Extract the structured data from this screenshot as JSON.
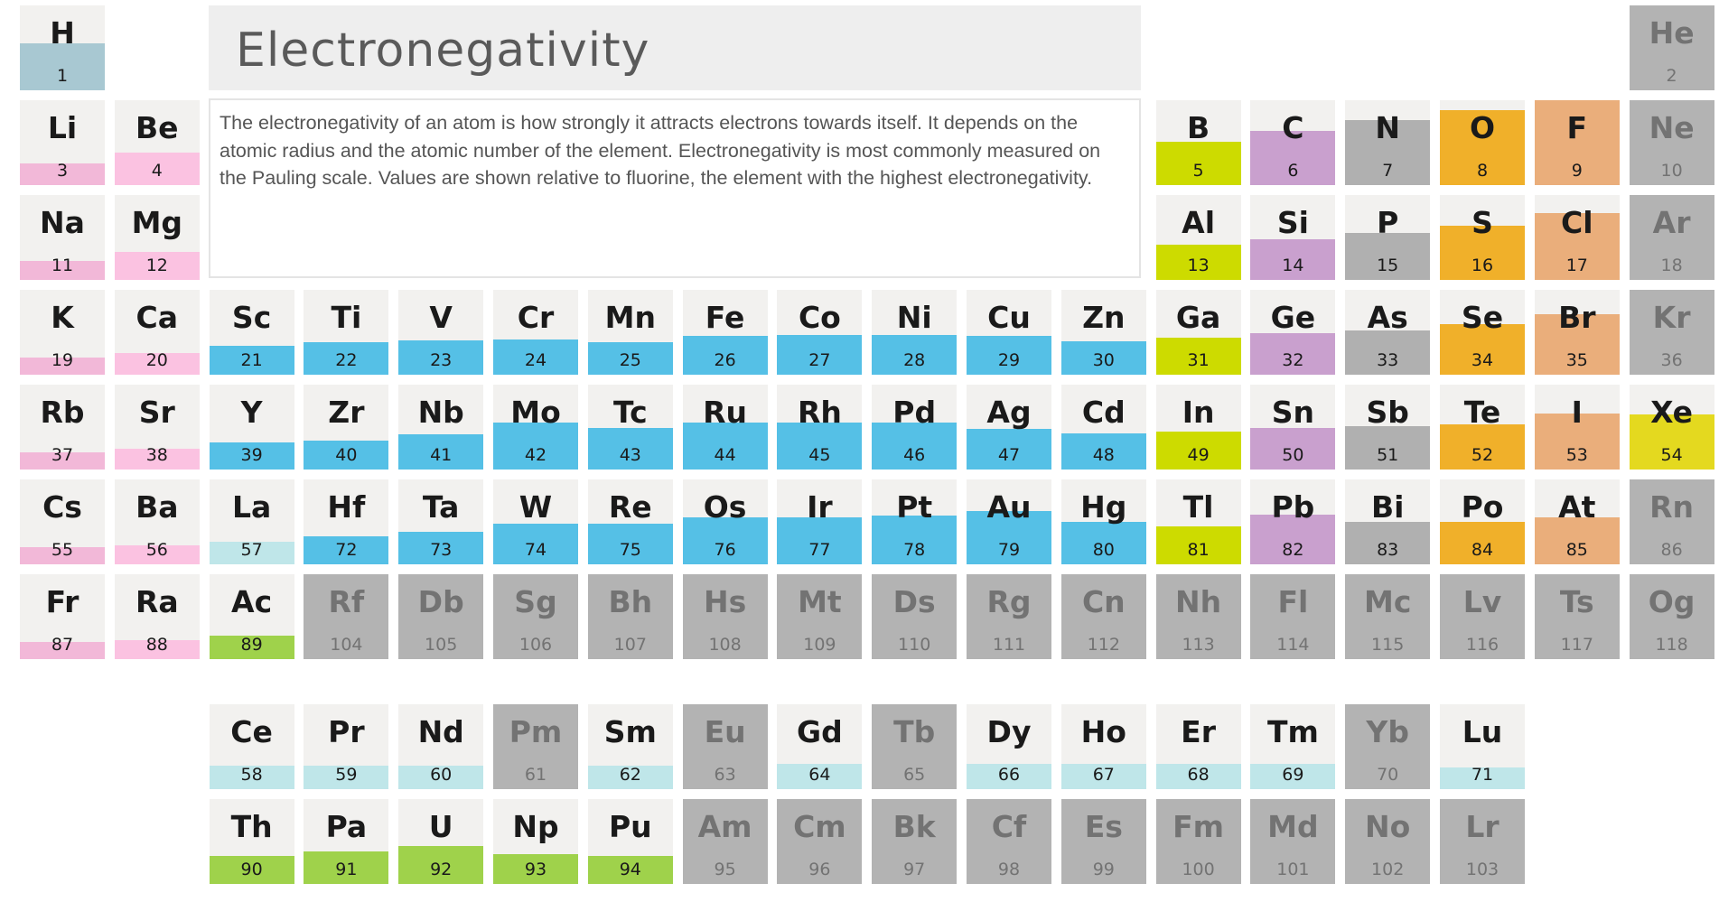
{
  "title": "Electronegativity",
  "description": "The electronegativity of an atom is how strongly it attracts electrons towards itself. It depends on the atomic radius and the atomic number of the element. Electronegativity is most commonly measured on the Pauling scale. Values are shown relative to fluorine, the element with the highest electronegativity.",
  "colors": {
    "cell_background": "#f2f1ef",
    "unknown_background": "#b3b3b3",
    "gray_text": "#737373",
    "groups": {
      "hydrogen": "#a8c8d2",
      "alkali": "#f2b8d8",
      "alkaline": "#fbc2e1",
      "transition": "#55c0e6",
      "lanthanide": "#bfe6e9",
      "actinide": "#9fd24b",
      "post_transition": "#cddb00",
      "metalloid": "#c9a0ce",
      "nonmetal": "#b0b0b0",
      "oxygen_group": "#f0b02a",
      "halogen": "#eaae7b",
      "noble": "#e4d91f"
    }
  },
  "elements": [
    {
      "symbol": "H",
      "number": 1,
      "row": 0,
      "col": 0,
      "group": "hydrogen",
      "fill": 0.55
    },
    {
      "symbol": "He",
      "number": 2,
      "row": 0,
      "col": 17,
      "group": "unknown",
      "fill": 0
    },
    {
      "symbol": "Li",
      "number": 3,
      "row": 1,
      "col": 0,
      "group": "alkali",
      "fill": 0.25
    },
    {
      "symbol": "Be",
      "number": 4,
      "row": 1,
      "col": 1,
      "group": "alkaline",
      "fill": 0.38
    },
    {
      "symbol": "B",
      "number": 5,
      "row": 1,
      "col": 12,
      "group": "post_transition",
      "fill": 0.51
    },
    {
      "symbol": "C",
      "number": 6,
      "row": 1,
      "col": 13,
      "group": "metalloid",
      "fill": 0.64
    },
    {
      "symbol": "N",
      "number": 7,
      "row": 1,
      "col": 14,
      "group": "nonmetal",
      "fill": 0.77
    },
    {
      "symbol": "O",
      "number": 8,
      "row": 1,
      "col": 15,
      "group": "oxygen_group",
      "fill": 0.88
    },
    {
      "symbol": "F",
      "number": 9,
      "row": 1,
      "col": 16,
      "group": "halogen",
      "fill": 1.0
    },
    {
      "symbol": "Ne",
      "number": 10,
      "row": 1,
      "col": 17,
      "group": "unknown",
      "fill": 0
    },
    {
      "symbol": "Na",
      "number": 11,
      "row": 2,
      "col": 0,
      "group": "alkali",
      "fill": 0.22
    },
    {
      "symbol": "Mg",
      "number": 12,
      "row": 2,
      "col": 1,
      "group": "alkaline",
      "fill": 0.33
    },
    {
      "symbol": "Al",
      "number": 13,
      "row": 2,
      "col": 12,
      "group": "post_transition",
      "fill": 0.41
    },
    {
      "symbol": "Si",
      "number": 14,
      "row": 2,
      "col": 13,
      "group": "metalloid",
      "fill": 0.48
    },
    {
      "symbol": "P",
      "number": 15,
      "row": 2,
      "col": 14,
      "group": "nonmetal",
      "fill": 0.55
    },
    {
      "symbol": "S",
      "number": 16,
      "row": 2,
      "col": 15,
      "group": "oxygen_group",
      "fill": 0.64
    },
    {
      "symbol": "Cl",
      "number": 17,
      "row": 2,
      "col": 16,
      "group": "halogen",
      "fill": 0.79
    },
    {
      "symbol": "Ar",
      "number": 18,
      "row": 2,
      "col": 17,
      "group": "unknown",
      "fill": 0
    },
    {
      "symbol": "K",
      "number": 19,
      "row": 3,
      "col": 0,
      "group": "alkali",
      "fill": 0.2
    },
    {
      "symbol": "Ca",
      "number": 20,
      "row": 3,
      "col": 1,
      "group": "alkaline",
      "fill": 0.25
    },
    {
      "symbol": "Sc",
      "number": 21,
      "row": 3,
      "col": 2,
      "group": "transition",
      "fill": 0.34
    },
    {
      "symbol": "Ti",
      "number": 22,
      "row": 3,
      "col": 3,
      "group": "transition",
      "fill": 0.38
    },
    {
      "symbol": "V",
      "number": 23,
      "row": 3,
      "col": 4,
      "group": "transition",
      "fill": 0.4
    },
    {
      "symbol": "Cr",
      "number": 24,
      "row": 3,
      "col": 5,
      "group": "transition",
      "fill": 0.41
    },
    {
      "symbol": "Mn",
      "number": 25,
      "row": 3,
      "col": 6,
      "group": "transition",
      "fill": 0.38
    },
    {
      "symbol": "Fe",
      "number": 26,
      "row": 3,
      "col": 7,
      "group": "transition",
      "fill": 0.46
    },
    {
      "symbol": "Co",
      "number": 27,
      "row": 3,
      "col": 8,
      "group": "transition",
      "fill": 0.47
    },
    {
      "symbol": "Ni",
      "number": 28,
      "row": 3,
      "col": 9,
      "group": "transition",
      "fill": 0.47
    },
    {
      "symbol": "Cu",
      "number": 29,
      "row": 3,
      "col": 10,
      "group": "transition",
      "fill": 0.46
    },
    {
      "symbol": "Zn",
      "number": 30,
      "row": 3,
      "col": 11,
      "group": "transition",
      "fill": 0.39
    },
    {
      "symbol": "Ga",
      "number": 31,
      "row": 3,
      "col": 12,
      "group": "post_transition",
      "fill": 0.44
    },
    {
      "symbol": "Ge",
      "number": 32,
      "row": 3,
      "col": 13,
      "group": "metalloid",
      "fill": 0.49
    },
    {
      "symbol": "As",
      "number": 33,
      "row": 3,
      "col": 14,
      "group": "nonmetal",
      "fill": 0.52
    },
    {
      "symbol": "Se",
      "number": 34,
      "row": 3,
      "col": 15,
      "group": "oxygen_group",
      "fill": 0.6
    },
    {
      "symbol": "Br",
      "number": 35,
      "row": 3,
      "col": 16,
      "group": "halogen",
      "fill": 0.71
    },
    {
      "symbol": "Kr",
      "number": 36,
      "row": 3,
      "col": 17,
      "group": "unknown",
      "fill": 0
    },
    {
      "symbol": "Rb",
      "number": 37,
      "row": 4,
      "col": 0,
      "group": "alkali",
      "fill": 0.2
    },
    {
      "symbol": "Sr",
      "number": 38,
      "row": 4,
      "col": 1,
      "group": "alkaline",
      "fill": 0.24
    },
    {
      "symbol": "Y",
      "number": 39,
      "row": 4,
      "col": 2,
      "group": "transition",
      "fill": 0.32
    },
    {
      "symbol": "Zr",
      "number": 40,
      "row": 4,
      "col": 3,
      "group": "transition",
      "fill": 0.34
    },
    {
      "symbol": "Nb",
      "number": 41,
      "row": 4,
      "col": 4,
      "group": "transition",
      "fill": 0.41
    },
    {
      "symbol": "Mo",
      "number": 42,
      "row": 4,
      "col": 5,
      "group": "transition",
      "fill": 0.55
    },
    {
      "symbol": "Tc",
      "number": 43,
      "row": 4,
      "col": 6,
      "group": "transition",
      "fill": 0.49
    },
    {
      "symbol": "Ru",
      "number": 44,
      "row": 4,
      "col": 7,
      "group": "transition",
      "fill": 0.55
    },
    {
      "symbol": "Rh",
      "number": 45,
      "row": 4,
      "col": 8,
      "group": "transition",
      "fill": 0.55
    },
    {
      "symbol": "Pd",
      "number": 46,
      "row": 4,
      "col": 9,
      "group": "transition",
      "fill": 0.55
    },
    {
      "symbol": "Ag",
      "number": 47,
      "row": 4,
      "col": 10,
      "group": "transition",
      "fill": 0.48
    },
    {
      "symbol": "Cd",
      "number": 48,
      "row": 4,
      "col": 11,
      "group": "transition",
      "fill": 0.43
    },
    {
      "symbol": "In",
      "number": 49,
      "row": 4,
      "col": 12,
      "group": "post_transition",
      "fill": 0.45
    },
    {
      "symbol": "Sn",
      "number": 50,
      "row": 4,
      "col": 13,
      "group": "metalloid",
      "fill": 0.49
    },
    {
      "symbol": "Sb",
      "number": 51,
      "row": 4,
      "col": 14,
      "group": "nonmetal",
      "fill": 0.51
    },
    {
      "symbol": "Te",
      "number": 52,
      "row": 4,
      "col": 15,
      "group": "oxygen_group",
      "fill": 0.53
    },
    {
      "symbol": "I",
      "number": 53,
      "row": 4,
      "col": 16,
      "group": "halogen",
      "fill": 0.66
    },
    {
      "symbol": "Xe",
      "number": 54,
      "row": 4,
      "col": 17,
      "group": "noble",
      "fill": 0.65
    },
    {
      "symbol": "Cs",
      "number": 55,
      "row": 5,
      "col": 0,
      "group": "alkali",
      "fill": 0.2
    },
    {
      "symbol": "Ba",
      "number": 56,
      "row": 5,
      "col": 1,
      "group": "alkaline",
      "fill": 0.22
    },
    {
      "symbol": "La",
      "number": 57,
      "row": 5,
      "col": 2,
      "group": "lanthanide",
      "fill": 0.27
    },
    {
      "symbol": "Hf",
      "number": 72,
      "row": 5,
      "col": 3,
      "group": "transition",
      "fill": 0.33
    },
    {
      "symbol": "Ta",
      "number": 73,
      "row": 5,
      "col": 4,
      "group": "transition",
      "fill": 0.38
    },
    {
      "symbol": "W",
      "number": 74,
      "row": 5,
      "col": 5,
      "group": "transition",
      "fill": 0.48
    },
    {
      "symbol": "Re",
      "number": 75,
      "row": 5,
      "col": 6,
      "group": "transition",
      "fill": 0.48
    },
    {
      "symbol": "Os",
      "number": 76,
      "row": 5,
      "col": 7,
      "group": "transition",
      "fill": 0.55
    },
    {
      "symbol": "Ir",
      "number": 77,
      "row": 5,
      "col": 8,
      "group": "transition",
      "fill": 0.55
    },
    {
      "symbol": "Pt",
      "number": 78,
      "row": 5,
      "col": 9,
      "group": "transition",
      "fill": 0.57
    },
    {
      "symbol": "Au",
      "number": 79,
      "row": 5,
      "col": 10,
      "group": "transition",
      "fill": 0.63
    },
    {
      "symbol": "Hg",
      "number": 80,
      "row": 5,
      "col": 11,
      "group": "transition",
      "fill": 0.5
    },
    {
      "symbol": "Tl",
      "number": 81,
      "row": 5,
      "col": 12,
      "group": "post_transition",
      "fill": 0.45
    },
    {
      "symbol": "Pb",
      "number": 82,
      "row": 5,
      "col": 13,
      "group": "metalloid",
      "fill": 0.58
    },
    {
      "symbol": "Bi",
      "number": 83,
      "row": 5,
      "col": 14,
      "group": "nonmetal",
      "fill": 0.5
    },
    {
      "symbol": "Po",
      "number": 84,
      "row": 5,
      "col": 15,
      "group": "oxygen_group",
      "fill": 0.5
    },
    {
      "symbol": "At",
      "number": 85,
      "row": 5,
      "col": 16,
      "group": "halogen",
      "fill": 0.55
    },
    {
      "symbol": "Rn",
      "number": 86,
      "row": 5,
      "col": 17,
      "group": "unknown",
      "fill": 0
    },
    {
      "symbol": "Fr",
      "number": 87,
      "row": 6,
      "col": 0,
      "group": "alkali",
      "fill": 0.2
    },
    {
      "symbol": "Ra",
      "number": 88,
      "row": 6,
      "col": 1,
      "group": "alkaline",
      "fill": 0.22
    },
    {
      "symbol": "Ac",
      "number": 89,
      "row": 6,
      "col": 2,
      "group": "actinide",
      "fill": 0.28
    },
    {
      "symbol": "Rf",
      "number": 104,
      "row": 6,
      "col": 3,
      "group": "unknown",
      "fill": 0
    },
    {
      "symbol": "Db",
      "number": 105,
      "row": 6,
      "col": 4,
      "group": "unknown",
      "fill": 0
    },
    {
      "symbol": "Sg",
      "number": 106,
      "row": 6,
      "col": 5,
      "group": "unknown",
      "fill": 0
    },
    {
      "symbol": "Bh",
      "number": 107,
      "row": 6,
      "col": 6,
      "group": "unknown",
      "fill": 0
    },
    {
      "symbol": "Hs",
      "number": 108,
      "row": 6,
      "col": 7,
      "group": "unknown",
      "fill": 0
    },
    {
      "symbol": "Mt",
      "number": 109,
      "row": 6,
      "col": 8,
      "group": "unknown",
      "fill": 0
    },
    {
      "symbol": "Ds",
      "number": 110,
      "row": 6,
      "col": 9,
      "group": "unknown",
      "fill": 0
    },
    {
      "symbol": "Rg",
      "number": 111,
      "row": 6,
      "col": 10,
      "group": "unknown",
      "fill": 0
    },
    {
      "symbol": "Cn",
      "number": 112,
      "row": 6,
      "col": 11,
      "group": "unknown",
      "fill": 0
    },
    {
      "symbol": "Nh",
      "number": 113,
      "row": 6,
      "col": 12,
      "group": "unknown",
      "fill": 0
    },
    {
      "symbol": "Fl",
      "number": 114,
      "row": 6,
      "col": 13,
      "group": "unknown",
      "fill": 0
    },
    {
      "symbol": "Mc",
      "number": 115,
      "row": 6,
      "col": 14,
      "group": "unknown",
      "fill": 0
    },
    {
      "symbol": "Lv",
      "number": 116,
      "row": 6,
      "col": 15,
      "group": "unknown",
      "fill": 0
    },
    {
      "symbol": "Ts",
      "number": 117,
      "row": 6,
      "col": 16,
      "group": "unknown",
      "fill": 0
    },
    {
      "symbol": "Og",
      "number": 118,
      "row": 6,
      "col": 17,
      "group": "unknown",
      "fill": 0
    },
    {
      "symbol": "Ce",
      "number": 58,
      "row": 7,
      "col": 2,
      "group": "lanthanide",
      "fill": 0.28
    },
    {
      "symbol": "Pr",
      "number": 59,
      "row": 7,
      "col": 3,
      "group": "lanthanide",
      "fill": 0.28
    },
    {
      "symbol": "Nd",
      "number": 60,
      "row": 7,
      "col": 4,
      "group": "lanthanide",
      "fill": 0.28
    },
    {
      "symbol": "Pm",
      "number": 61,
      "row": 7,
      "col": 5,
      "group": "unknown",
      "fill": 0
    },
    {
      "symbol": "Sm",
      "number": 62,
      "row": 7,
      "col": 6,
      "group": "lanthanide",
      "fill": 0.28
    },
    {
      "symbol": "Eu",
      "number": 63,
      "row": 7,
      "col": 7,
      "group": "unknown",
      "fill": 0
    },
    {
      "symbol": "Gd",
      "number": 64,
      "row": 7,
      "col": 8,
      "group": "lanthanide",
      "fill": 0.3
    },
    {
      "symbol": "Tb",
      "number": 65,
      "row": 7,
      "col": 9,
      "group": "unknown",
      "fill": 0
    },
    {
      "symbol": "Dy",
      "number": 66,
      "row": 7,
      "col": 10,
      "group": "lanthanide",
      "fill": 0.3
    },
    {
      "symbol": "Ho",
      "number": 67,
      "row": 7,
      "col": 11,
      "group": "lanthanide",
      "fill": 0.3
    },
    {
      "symbol": "Er",
      "number": 68,
      "row": 7,
      "col": 12,
      "group": "lanthanide",
      "fill": 0.3
    },
    {
      "symbol": "Tm",
      "number": 69,
      "row": 7,
      "col": 13,
      "group": "lanthanide",
      "fill": 0.3
    },
    {
      "symbol": "Yb",
      "number": 70,
      "row": 7,
      "col": 14,
      "group": "unknown",
      "fill": 0
    },
    {
      "symbol": "Lu",
      "number": 71,
      "row": 7,
      "col": 15,
      "group": "lanthanide",
      "fill": 0.25
    },
    {
      "symbol": "Th",
      "number": 90,
      "row": 8,
      "col": 2,
      "group": "actinide",
      "fill": 0.33
    },
    {
      "symbol": "Pa",
      "number": 91,
      "row": 8,
      "col": 3,
      "group": "actinide",
      "fill": 0.38
    },
    {
      "symbol": "U",
      "number": 92,
      "row": 8,
      "col": 4,
      "group": "actinide",
      "fill": 0.45
    },
    {
      "symbol": "Np",
      "number": 93,
      "row": 8,
      "col": 5,
      "group": "actinide",
      "fill": 0.35
    },
    {
      "symbol": "Pu",
      "number": 94,
      "row": 8,
      "col": 6,
      "group": "actinide",
      "fill": 0.33
    },
    {
      "symbol": "Am",
      "number": 95,
      "row": 8,
      "col": 7,
      "group": "unknown",
      "fill": 0
    },
    {
      "symbol": "Cm",
      "number": 96,
      "row": 8,
      "col": 8,
      "group": "unknown",
      "fill": 0
    },
    {
      "symbol": "Bk",
      "number": 97,
      "row": 8,
      "col": 9,
      "group": "unknown",
      "fill": 0
    },
    {
      "symbol": "Cf",
      "number": 98,
      "row": 8,
      "col": 10,
      "group": "unknown",
      "fill": 0
    },
    {
      "symbol": "Es",
      "number": 99,
      "row": 8,
      "col": 11,
      "group": "unknown",
      "fill": 0
    },
    {
      "symbol": "Fm",
      "number": 100,
      "row": 8,
      "col": 12,
      "group": "unknown",
      "fill": 0
    },
    {
      "symbol": "Md",
      "number": 101,
      "row": 8,
      "col": 13,
      "group": "unknown",
      "fill": 0
    },
    {
      "symbol": "No",
      "number": 102,
      "row": 8,
      "col": 14,
      "group": "unknown",
      "fill": 0
    },
    {
      "symbol": "Lr",
      "number": 103,
      "row": 8,
      "col": 15,
      "group": "unknown",
      "fill": 0
    }
  ]
}
